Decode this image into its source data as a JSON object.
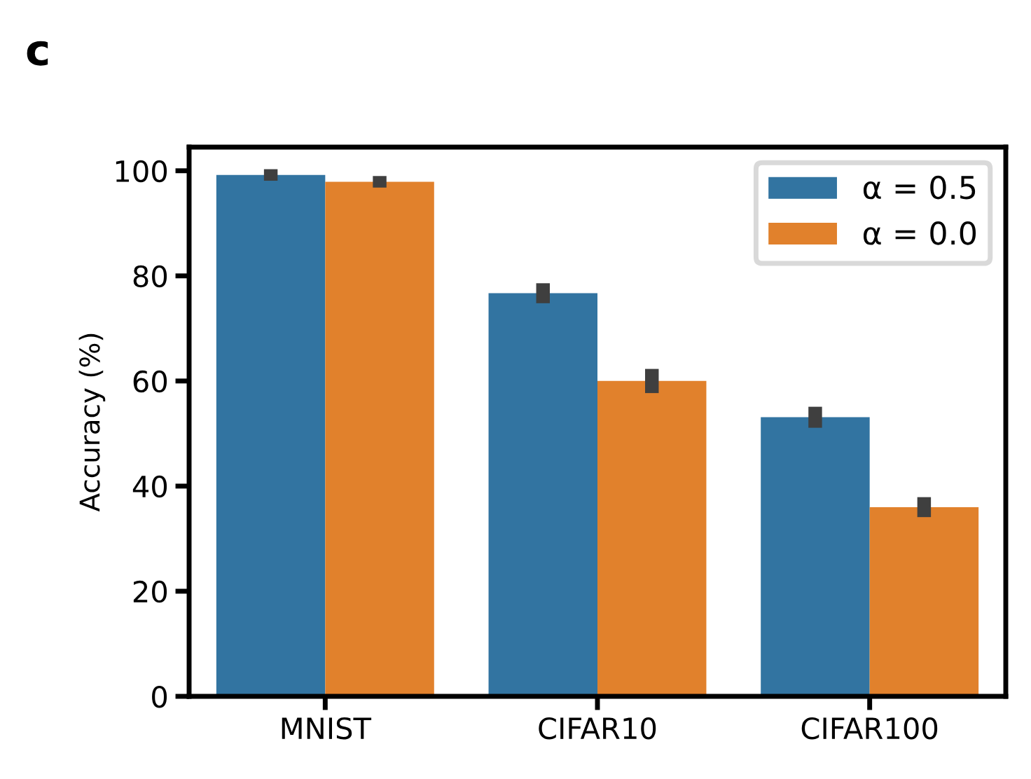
{
  "chart_data": {
    "type": "bar",
    "annotations": [
      "c"
    ],
    "ylabel": "Accuracy (%)",
    "categories": [
      "MNIST",
      "CIFAR10",
      "CIFAR100"
    ],
    "series": [
      {
        "name": "α = 0.5",
        "color": "#3274a1",
        "values": [
          99.2,
          76.7,
          53.1
        ],
        "errors": [
          1.1,
          1.9,
          2.0
        ]
      },
      {
        "name": "α = 0.0",
        "color": "#e1812c",
        "values": [
          97.9,
          60.0,
          36.0
        ],
        "errors": [
          1.1,
          2.3,
          1.9
        ]
      }
    ],
    "ylim": [
      0,
      104.5
    ],
    "yticks": [
      0,
      20,
      40,
      60,
      80,
      100
    ],
    "grid": false,
    "legend": "top right"
  }
}
